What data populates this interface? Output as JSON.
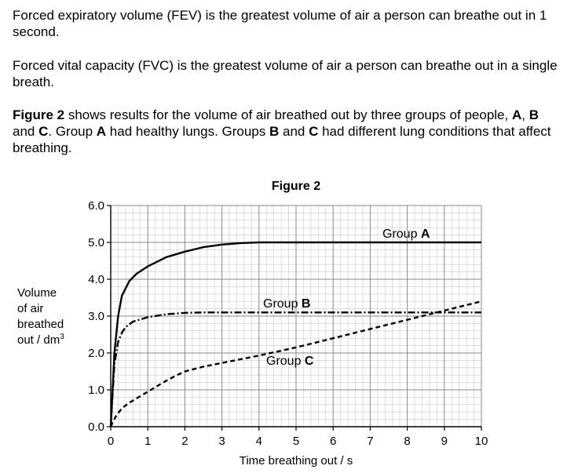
{
  "text": {
    "p1": "Forced expiratory volume (FEV) is the greatest volume of air a person can breathe out in 1 second.",
    "p2": "Forced vital capacity (FVC) is the greatest volume of air a person can breathe out in a single breath.",
    "p3": {
      "figure_ref": "Figure 2",
      "part1": " shows results for the volume of air breathed out by three groups of people, ",
      "A": "A",
      "comma": ", ",
      "B": "B",
      "and": " and ",
      "C": "C",
      "part2": ". Group ",
      "A2": "A",
      "part3": " had healthy lungs.  Groups ",
      "B2": "B",
      "and2": " and ",
      "C2": "C",
      "part4": " had different lung conditions that affect breathing."
    }
  },
  "chart_data": {
    "type": "line",
    "title": "Figure 2",
    "xlabel": "Time breathing out / s",
    "ylabel_lines": [
      "Volume",
      "of air",
      "breathed",
      "out / dm"
    ],
    "ylabel_sup": "3",
    "xlim": [
      0,
      10
    ],
    "ylim": [
      0,
      6
    ],
    "xticks": [
      "0",
      "1",
      "2",
      "3",
      "4",
      "5",
      "6",
      "7",
      "8",
      "9",
      "10"
    ],
    "yticks": [
      "0.0",
      "1.0",
      "2.0",
      "3.0",
      "4.0",
      "5.0",
      "6.0"
    ],
    "grid": true,
    "series": [
      {
        "name": "A",
        "label_prefix": "Group ",
        "style": "solid",
        "x": [
          0,
          0.05,
          0.1,
          0.2,
          0.3,
          0.5,
          0.7,
          1,
          1.5,
          2,
          2.5,
          3,
          3.5,
          4,
          5,
          6,
          7,
          8,
          9,
          10
        ],
        "y": [
          0,
          1.0,
          2.0,
          3.0,
          3.55,
          3.95,
          4.15,
          4.35,
          4.6,
          4.75,
          4.87,
          4.94,
          4.98,
          5.0,
          5.0,
          5.0,
          5.0,
          5.0,
          5.0,
          5.0
        ]
      },
      {
        "name": "B",
        "label_prefix": "Group ",
        "style": "dashdot",
        "x": [
          0,
          0.05,
          0.1,
          0.2,
          0.3,
          0.4,
          0.6,
          1,
          1.5,
          2,
          2.5,
          3,
          4,
          5,
          6,
          7,
          8,
          9,
          10
        ],
        "y": [
          0,
          0.9,
          1.7,
          2.3,
          2.55,
          2.7,
          2.85,
          2.97,
          3.05,
          3.09,
          3.1,
          3.1,
          3.1,
          3.1,
          3.1,
          3.1,
          3.1,
          3.1,
          3.1
        ]
      },
      {
        "name": "C",
        "label_prefix": "Group ",
        "style": "dashed",
        "x": [
          0,
          0.05,
          0.15,
          0.3,
          0.5,
          0.75,
          1,
          1.25,
          1.5,
          1.75,
          2,
          2.5,
          3,
          4,
          5,
          6,
          7,
          8,
          9,
          10
        ],
        "y": [
          0,
          0.12,
          0.3,
          0.5,
          0.65,
          0.8,
          0.95,
          1.1,
          1.25,
          1.38,
          1.5,
          1.63,
          1.73,
          1.93,
          2.15,
          2.4,
          2.65,
          2.9,
          3.15,
          3.4
        ]
      }
    ]
  }
}
